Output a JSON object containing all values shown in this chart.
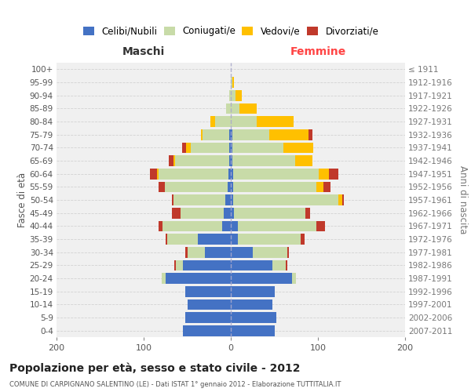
{
  "age_groups": [
    "0-4",
    "5-9",
    "10-14",
    "15-19",
    "20-24",
    "25-29",
    "30-34",
    "35-39",
    "40-44",
    "45-49",
    "50-54",
    "55-59",
    "60-64",
    "65-69",
    "70-74",
    "75-79",
    "80-84",
    "85-89",
    "90-94",
    "95-99",
    "100+"
  ],
  "birth_years": [
    "2007-2011",
    "2002-2006",
    "1997-2001",
    "1992-1996",
    "1987-1991",
    "1982-1986",
    "1977-1981",
    "1972-1976",
    "1967-1971",
    "1962-1966",
    "1957-1961",
    "1952-1956",
    "1947-1951",
    "1942-1946",
    "1937-1941",
    "1932-1936",
    "1927-1931",
    "1922-1926",
    "1917-1921",
    "1912-1916",
    "≤ 1911"
  ],
  "male": {
    "celibi": [
      55,
      52,
      50,
      52,
      75,
      55,
      30,
      38,
      10,
      8,
      6,
      4,
      3,
      2,
      2,
      2,
      0,
      0,
      0,
      0,
      0
    ],
    "coniugati": [
      0,
      0,
      0,
      0,
      4,
      8,
      20,
      35,
      68,
      50,
      60,
      72,
      80,
      62,
      44,
      30,
      18,
      5,
      2,
      0,
      0
    ],
    "vedovi": [
      0,
      0,
      0,
      0,
      0,
      0,
      0,
      0,
      0,
      0,
      0,
      0,
      2,
      2,
      5,
      2,
      5,
      0,
      0,
      0,
      0
    ],
    "divorziati": [
      0,
      0,
      0,
      0,
      0,
      2,
      2,
      2,
      5,
      10,
      2,
      7,
      8,
      5,
      5,
      0,
      0,
      0,
      0,
      0,
      0
    ]
  },
  "female": {
    "nubili": [
      50,
      52,
      48,
      50,
      70,
      48,
      25,
      8,
      8,
      4,
      3,
      3,
      3,
      2,
      2,
      2,
      0,
      0,
      0,
      0,
      0
    ],
    "coniugate": [
      0,
      0,
      0,
      0,
      5,
      15,
      40,
      72,
      90,
      82,
      120,
      95,
      98,
      72,
      58,
      42,
      30,
      10,
      5,
      2,
      0
    ],
    "vedove": [
      0,
      0,
      0,
      0,
      0,
      0,
      0,
      0,
      0,
      0,
      5,
      8,
      12,
      20,
      35,
      45,
      42,
      20,
      8,
      2,
      0
    ],
    "divorziate": [
      0,
      0,
      0,
      0,
      0,
      2,
      2,
      5,
      10,
      5,
      2,
      8,
      10,
      0,
      0,
      5,
      0,
      0,
      0,
      0,
      0
    ]
  },
  "colors": {
    "celibi_nubili": "#4472c4",
    "coniugati": "#c8dba8",
    "vedovi": "#ffc000",
    "divorziati": "#c0392b"
  },
  "xlim": 200,
  "title": "Popolazione per età, sesso e stato civile - 2012",
  "subtitle": "COMUNE DI CARPIGNANO SALENTINO (LE) - Dati ISTAT 1° gennaio 2012 - Elaborazione TUTTITALIA.IT",
  "ylabel_left": "Fasce di età",
  "ylabel_right": "Anni di nascita",
  "xlabel_left": "Maschi",
  "xlabel_right": "Femmine",
  "bg_color": "#ffffff",
  "plot_bg": "#f0f0f0",
  "grid_color": "#cccccc"
}
